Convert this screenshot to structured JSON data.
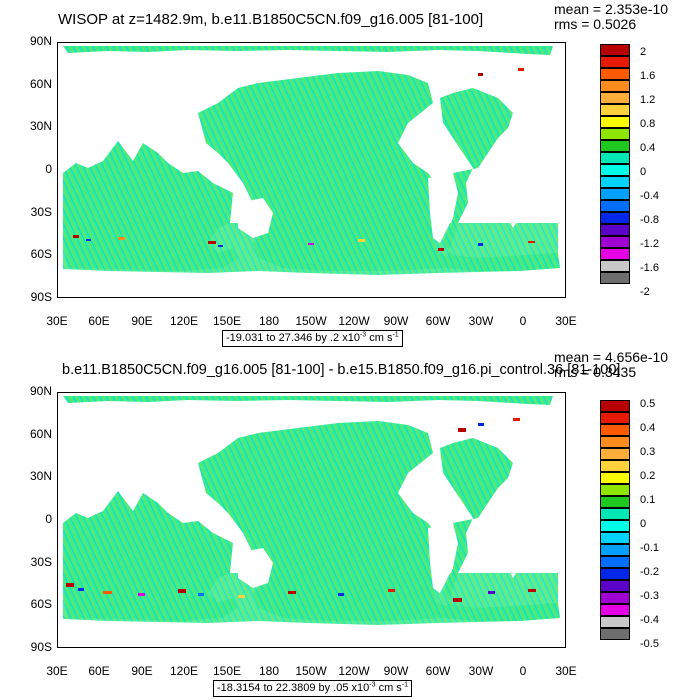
{
  "panels": [
    {
      "title": "WISOP at z=1482.9m, b.e11.B1850C5CN.f09_g16.005 [81-100]",
      "stats": [
        "mean = 2.353e-10",
        "rms = 0.5026"
      ],
      "range": {
        "text": "-19.031 to 27.346 by .2 x10",
        "exponent": "-3",
        "units": " cm s",
        "unit_exponent": "-1"
      },
      "colorbar_labels": [
        "2",
        "1.6",
        "1.2",
        "0.8",
        "0.4",
        "0",
        "-0.4",
        "-0.8",
        "-1.2",
        "-1.6",
        "-2"
      ]
    },
    {
      "title": "b.e11.B1850C5CN.f09_g16.005 [81-100] - b.e15.B1850.f09_g16.pi_control.36 [81-100]",
      "stats": [
        "mean = 4.656e-10",
        "rms = 0.3435"
      ],
      "range": {
        "text": "-18.3154 to 22.3809 by .05 x10",
        "exponent": "-3",
        "units": " cm s",
        "unit_exponent": "-1"
      },
      "colorbar_labels": [
        "0.5",
        "0.4",
        "0.3",
        "0.2",
        "0.1",
        "0",
        "-0.1",
        "-0.2",
        "-0.3",
        "-0.4",
        "-0.5"
      ]
    }
  ],
  "lat_labels": [
    "90N",
    "60N",
    "30N",
    "0",
    "30S",
    "60S",
    "90S"
  ],
  "lon_labels": [
    "30E",
    "60E",
    "90E",
    "120E",
    "150E",
    "180",
    "150W",
    "120W",
    "90W",
    "60W",
    "30W",
    "0",
    "30E"
  ],
  "colorbar_colors": [
    "#b80000",
    "#e61a00",
    "#ff5a00",
    "#ff8a1e",
    "#ffae3c",
    "#ffd23c",
    "#ffff00",
    "#8ce600",
    "#1ec81e",
    "#00e6b4",
    "#00ffe6",
    "#00d2ff",
    "#00a0ff",
    "#006eff",
    "#0028e6",
    "#5a00c8",
    "#a000d2",
    "#e600e6",
    "#c8c8c8",
    "#6e6e6e"
  ],
  "ocean_color": "#33ee99"
}
